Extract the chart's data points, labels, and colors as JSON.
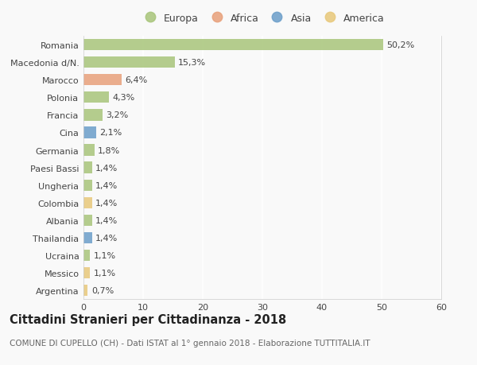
{
  "categories": [
    "Romania",
    "Macedonia d/N.",
    "Marocco",
    "Polonia",
    "Francia",
    "Cina",
    "Germania",
    "Paesi Bassi",
    "Ungheria",
    "Colombia",
    "Albania",
    "Thailandia",
    "Ucraina",
    "Messico",
    "Argentina"
  ],
  "values": [
    50.2,
    15.3,
    6.4,
    4.3,
    3.2,
    2.1,
    1.8,
    1.4,
    1.4,
    1.4,
    1.4,
    1.4,
    1.1,
    1.1,
    0.7
  ],
  "labels": [
    "50,2%",
    "15,3%",
    "6,4%",
    "4,3%",
    "3,2%",
    "2,1%",
    "1,8%",
    "1,4%",
    "1,4%",
    "1,4%",
    "1,4%",
    "1,4%",
    "1,1%",
    "1,1%",
    "0,7%"
  ],
  "continents": [
    "Europa",
    "Europa",
    "Africa",
    "Europa",
    "Europa",
    "Asia",
    "Europa",
    "Europa",
    "Europa",
    "America",
    "Europa",
    "Asia",
    "Europa",
    "America",
    "America"
  ],
  "colors": {
    "Europa": "#a8c57a",
    "Africa": "#e8a07a",
    "Asia": "#6b9ec9",
    "America": "#e8c87a"
  },
  "legend_order": [
    "Europa",
    "Africa",
    "Asia",
    "America"
  ],
  "title": "Cittadini Stranieri per Cittadinanza - 2018",
  "subtitle": "COMUNE DI CUPELLO (CH) - Dati ISTAT al 1° gennaio 2018 - Elaborazione TUTTITALIA.IT",
  "xlim": [
    0,
    60
  ],
  "xticks": [
    0,
    10,
    20,
    30,
    40,
    50,
    60
  ],
  "background_color": "#f9f9f9",
  "grid_color": "#e0e0e0",
  "bar_height": 0.65,
  "label_fontsize": 8,
  "tick_fontsize": 8,
  "title_fontsize": 10.5,
  "subtitle_fontsize": 7.5
}
